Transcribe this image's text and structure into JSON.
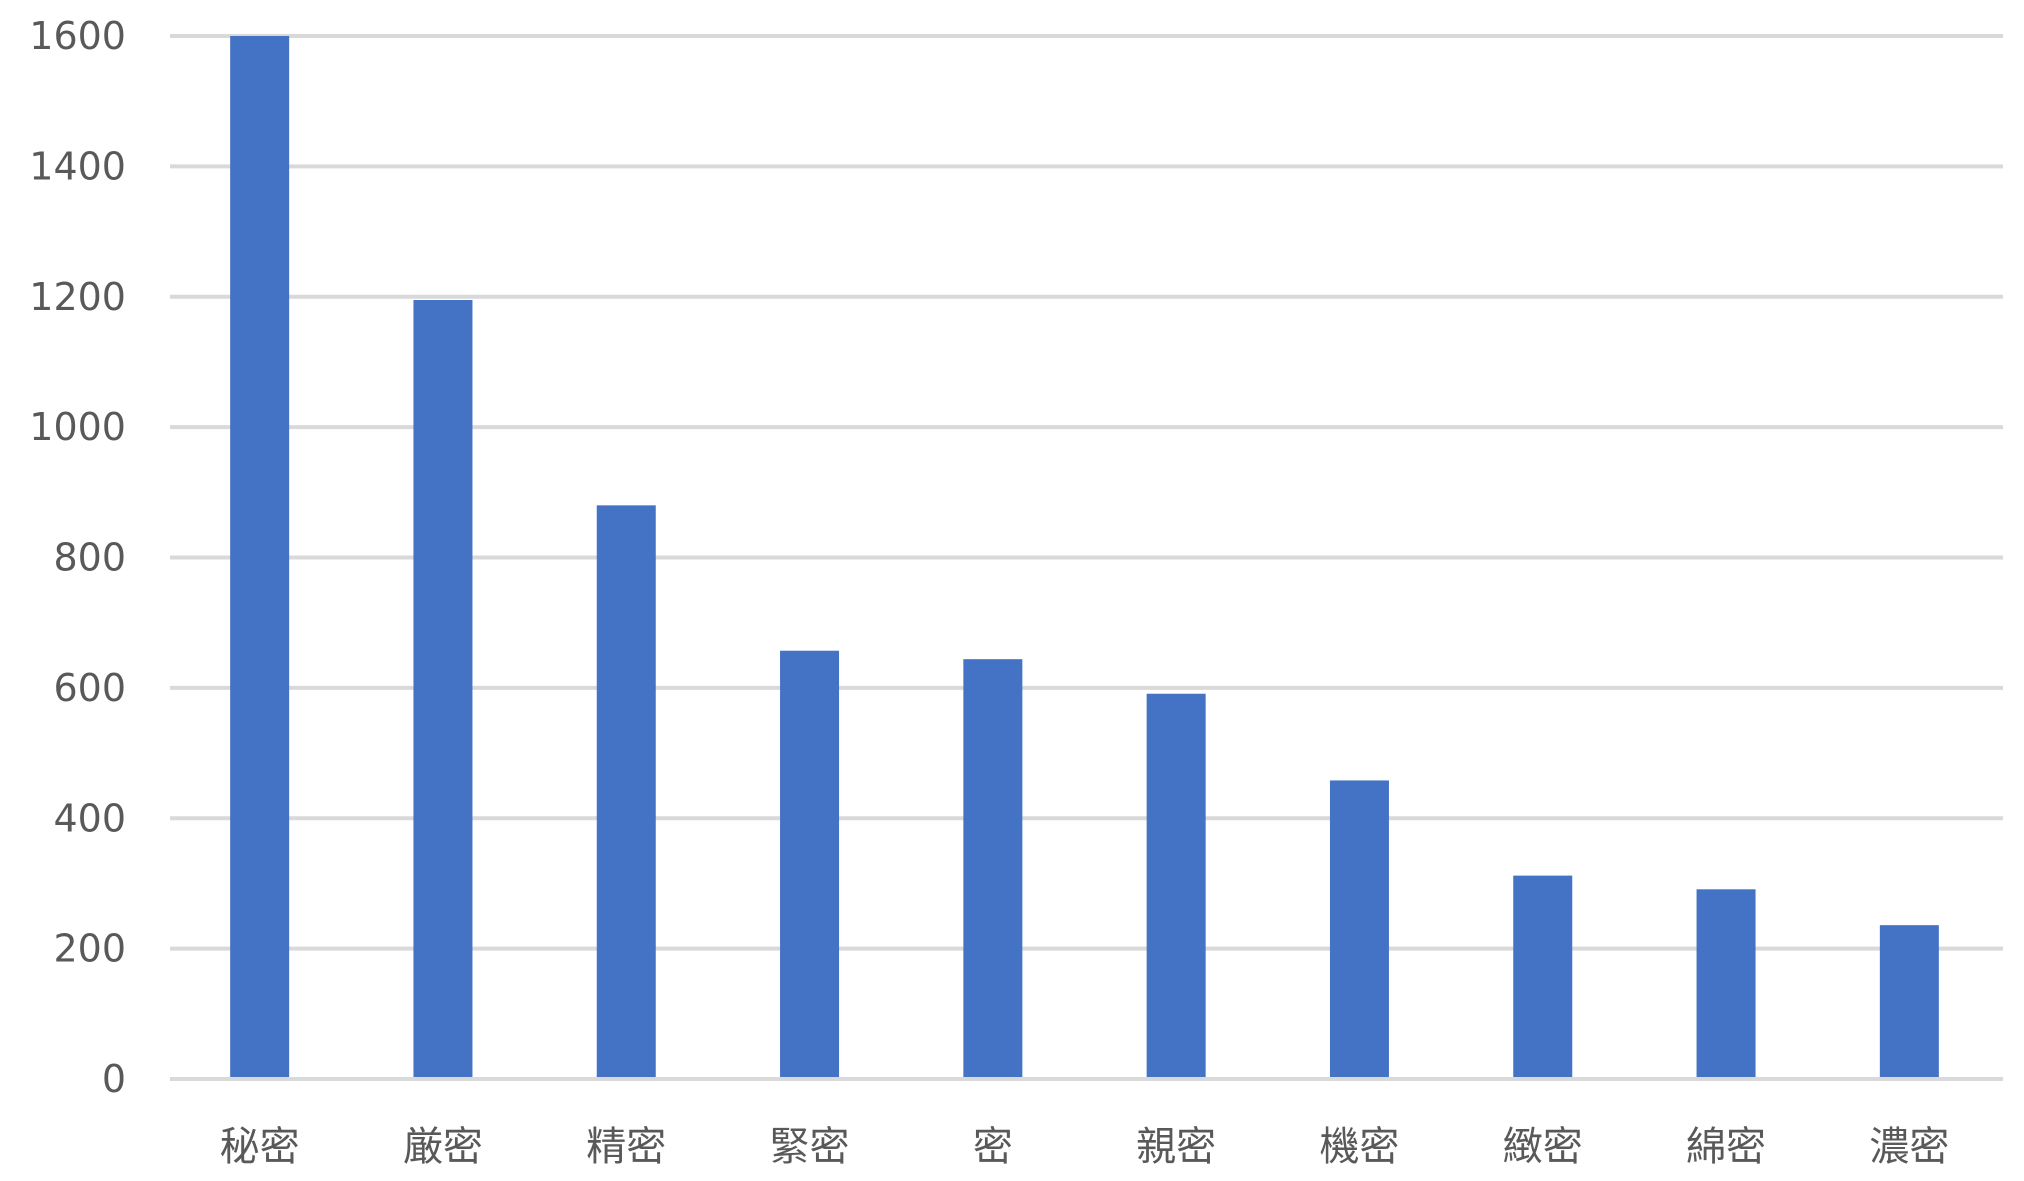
{
  "chart_data": {
    "type": "bar",
    "title": "",
    "xlabel": "",
    "ylabel": "",
    "categories": [
      "秘密",
      "厳密",
      "精密",
      "緊密",
      "密",
      "親密",
      "機密",
      "緻密",
      "綿密",
      "濃密"
    ],
    "values": [
      1600,
      1195,
      880,
      657,
      644,
      591,
      458,
      312,
      291,
      236
    ],
    "ylim": [
      0,
      1600
    ],
    "yticks": [
      0,
      200,
      400,
      600,
      800,
      1000,
      1200,
      1400,
      1600
    ],
    "ytick_labels": [
      "0",
      "200",
      "400",
      "600",
      "800",
      "1000",
      "1200",
      "1400",
      "1600"
    ],
    "grid": true,
    "legend": "none",
    "colors": {
      "bar": "#4472C4",
      "grid": "#D9D9D9",
      "text": "#595959"
    }
  }
}
